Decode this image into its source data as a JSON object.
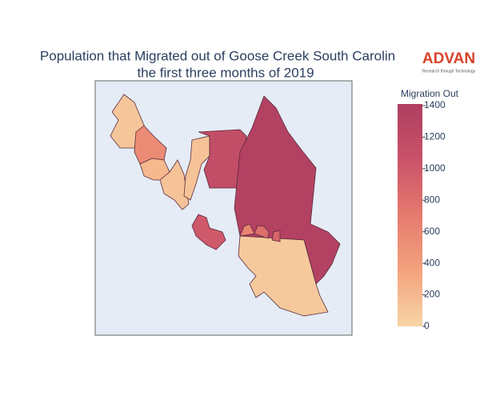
{
  "chart_data": {
    "type": "choropleth",
    "title": [
      "Population that Migrated out of Goose Creek South Carolin",
      "the first three months of 2019"
    ],
    "logo": {
      "name": "ADVAN",
      "tagline": "Research through Technology"
    },
    "colorbar_title": "Migration Out",
    "colorscale": [
      "#f7d4a6",
      "#f3a37e",
      "#e57a6e",
      "#c95369",
      "#ae3d60"
    ],
    "values": [
      100,
      560,
      200,
      120,
      120,
      1150,
      1350,
      1000,
      80,
      600,
      800,
      900
    ],
    "clim": [
      0,
      1410
    ],
    "cticks": [
      0,
      200,
      400,
      600,
      800,
      1000,
      1200,
      1400
    ]
  }
}
